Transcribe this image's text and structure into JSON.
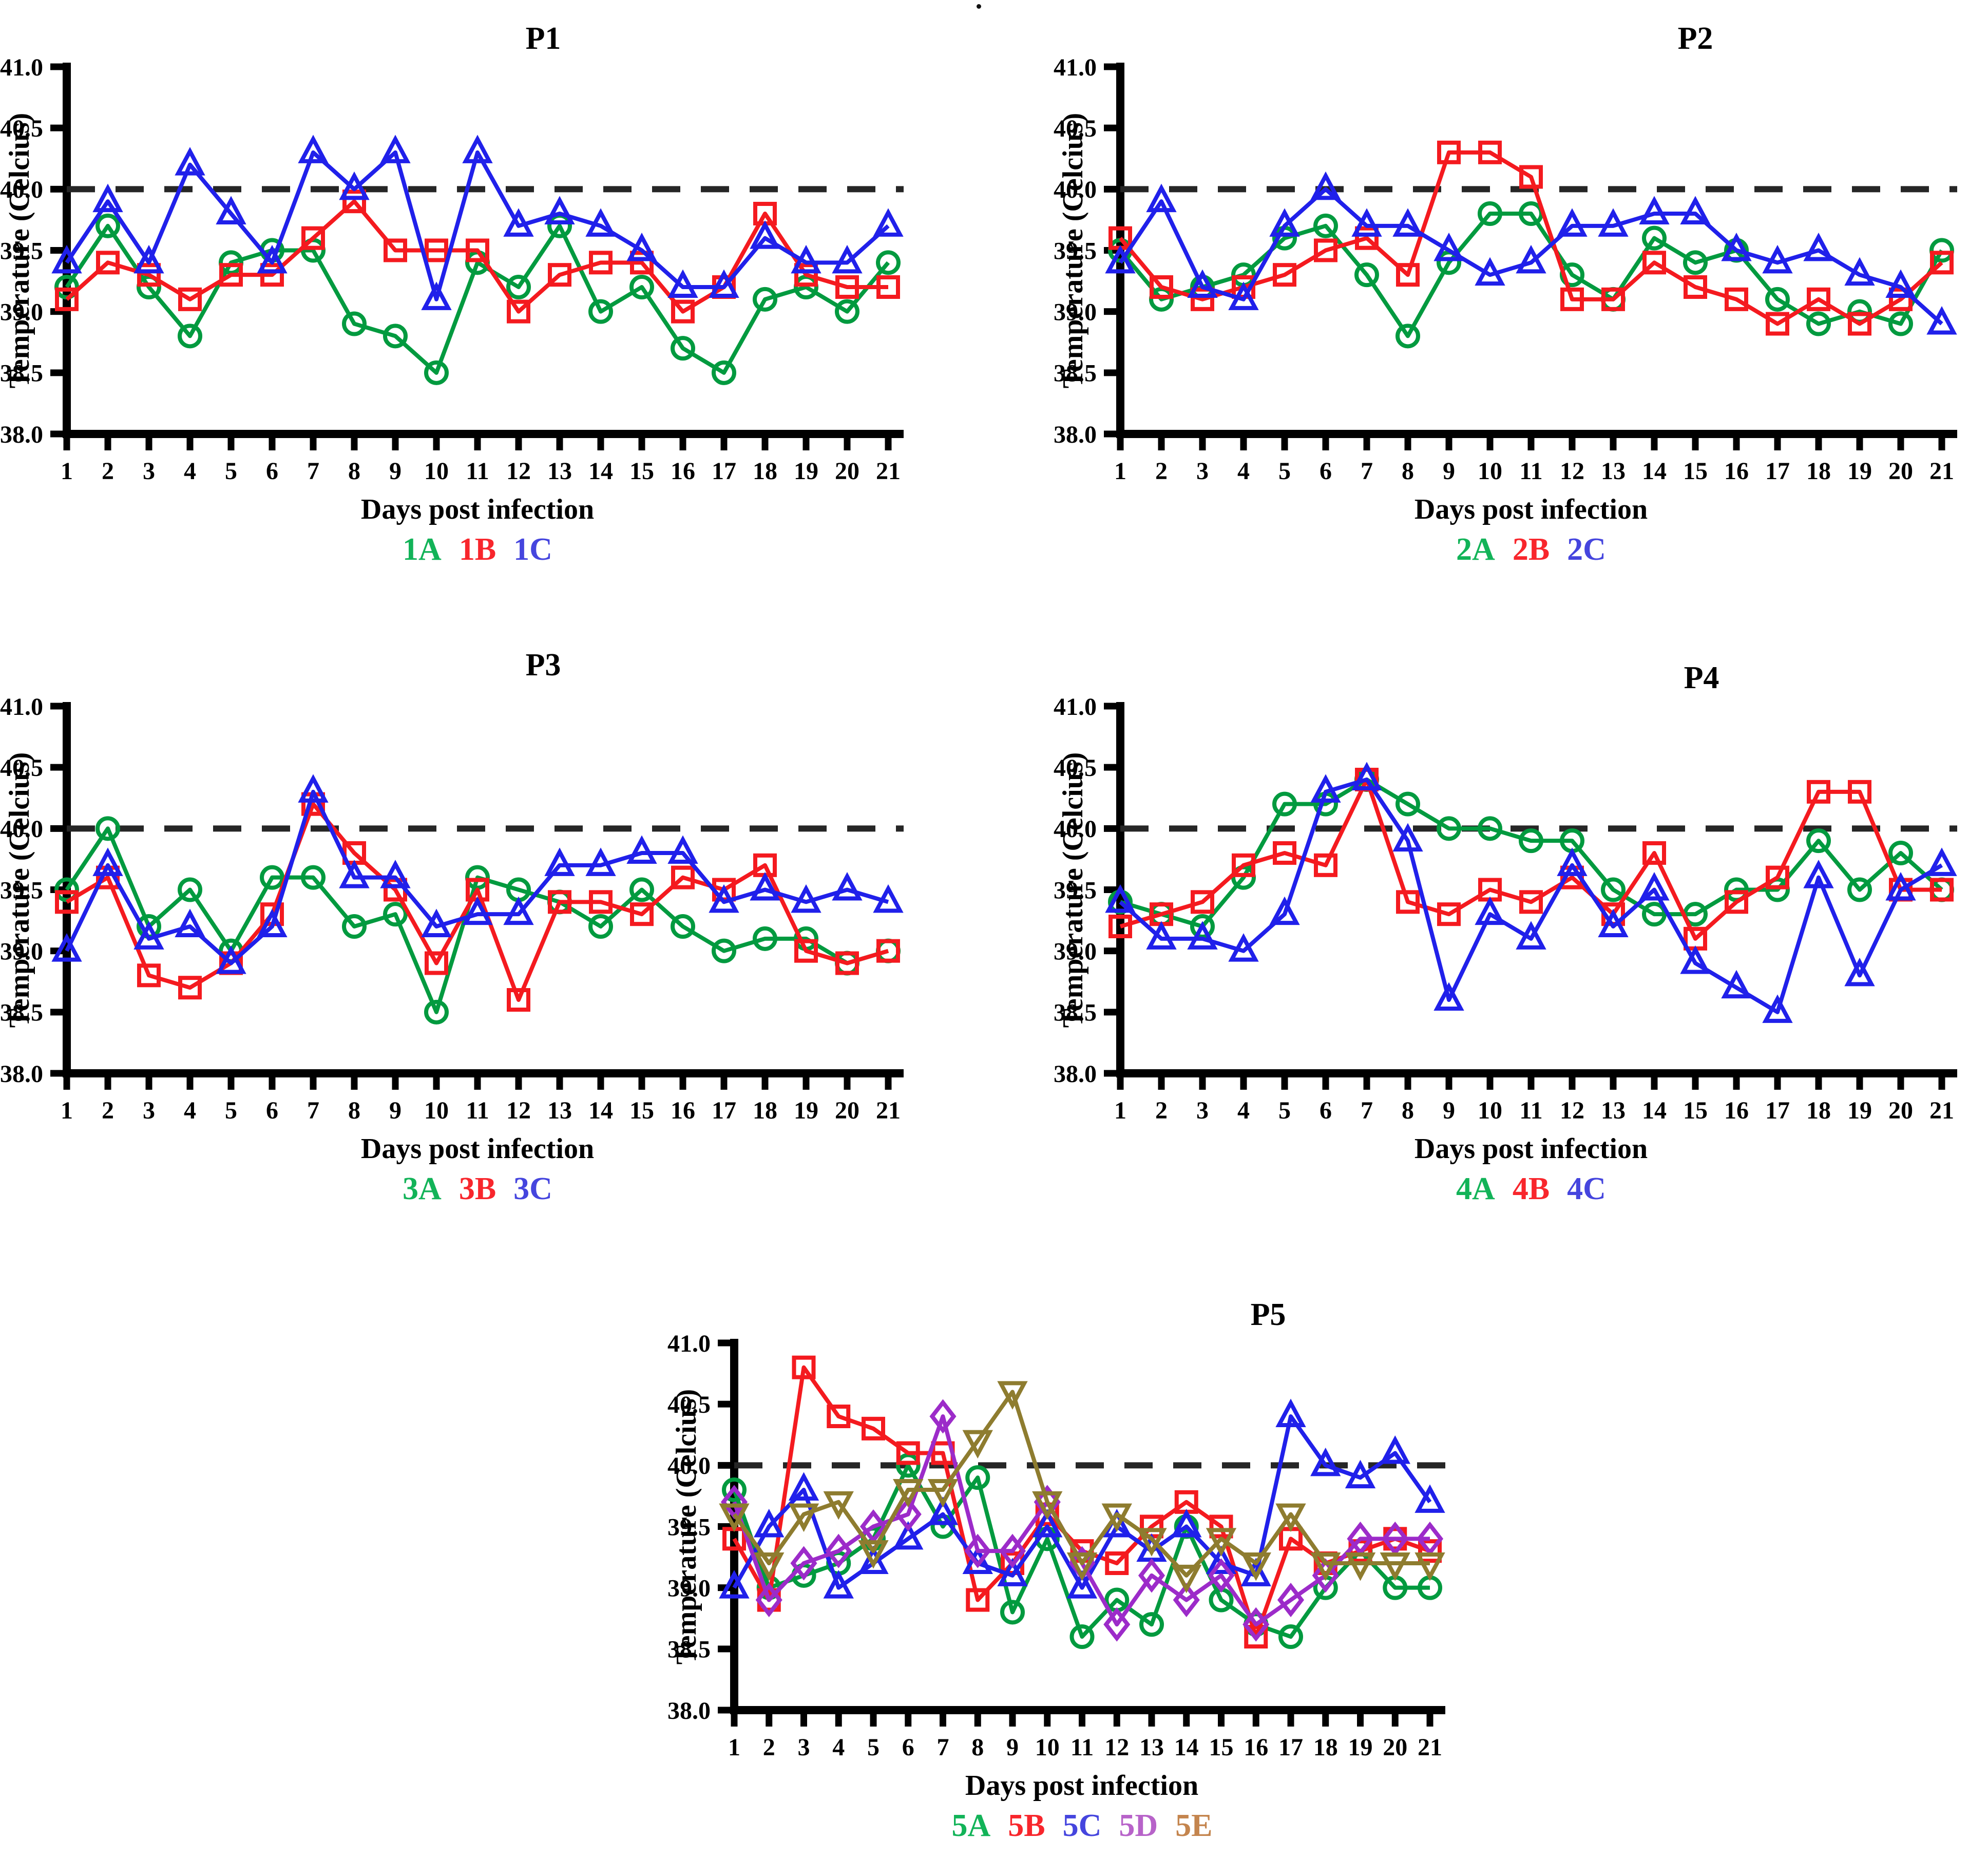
{
  "figure_note": "Five line charts of body temperature (Celcius) vs days post infection for animal groups P1-P5",
  "reference_line_color": "#262626",
  "chart_data": [
    {
      "type": "line",
      "title": "P1",
      "xlabel": "Days post infection",
      "ylabel": "Temperature (Celcius)",
      "x": [
        1,
        2,
        3,
        4,
        5,
        6,
        7,
        8,
        9,
        10,
        11,
        12,
        13,
        14,
        15,
        16,
        17,
        18,
        19,
        20,
        21
      ],
      "ylim": [
        38.0,
        41.0
      ],
      "yticks": [
        38.0,
        38.5,
        39.0,
        39.5,
        40.0,
        40.5,
        41.0
      ],
      "ytick_labels": [
        "38.0",
        "38.5",
        "39.0",
        "39.5",
        "40.0",
        "40.5",
        "41.0"
      ],
      "reference_line": 40.0,
      "grid": false,
      "legend_position": "bottom",
      "series": [
        {
          "name": "1A",
          "marker": "circle",
          "color": "#029A3F",
          "legend_color": "#12B358",
          "values": [
            39.2,
            39.7,
            39.2,
            38.8,
            39.4,
            39.5,
            39.5,
            38.9,
            38.8,
            38.5,
            39.4,
            39.2,
            39.7,
            39.0,
            39.2,
            38.7,
            38.5,
            39.1,
            39.2,
            39.0,
            39.4
          ]
        },
        {
          "name": "1B",
          "marker": "square",
          "color": "#F41A1F",
          "legend_color": "#F8262C",
          "values": [
            39.1,
            39.4,
            39.3,
            39.1,
            39.3,
            39.3,
            39.6,
            39.9,
            39.5,
            39.5,
            39.5,
            39.0,
            39.3,
            39.4,
            39.4,
            39.0,
            39.2,
            39.8,
            39.3,
            39.2,
            39.2
          ]
        },
        {
          "name": "1C",
          "marker": "triangle-up",
          "color": "#2020EA",
          "legend_color": "#4545DE",
          "values": [
            39.4,
            39.9,
            39.4,
            40.2,
            39.8,
            39.4,
            40.3,
            40.0,
            40.3,
            39.1,
            40.3,
            39.7,
            39.8,
            39.7,
            39.5,
            39.2,
            39.2,
            39.6,
            39.4,
            39.4,
            39.7
          ]
        }
      ]
    },
    {
      "type": "line",
      "title": "P2",
      "xlabel": "Days post infection",
      "ylabel": "Temperature (Celcius)",
      "x": [
        1,
        2,
        3,
        4,
        5,
        6,
        7,
        8,
        9,
        10,
        11,
        12,
        13,
        14,
        15,
        16,
        17,
        18,
        19,
        20,
        21
      ],
      "ylim": [
        38.0,
        41.0
      ],
      "yticks": [
        38.0,
        38.5,
        39.0,
        39.5,
        40.0,
        40.5,
        41.0
      ],
      "ytick_labels": [
        "38.0",
        "38.5",
        "39.0",
        "39.5",
        "40.0",
        "40.5",
        "41.0"
      ],
      "reference_line": 40.0,
      "grid": false,
      "legend_position": "bottom",
      "series": [
        {
          "name": "2A",
          "marker": "circle",
          "color": "#029A3F",
          "legend_color": "#12B358",
          "values": [
            39.5,
            39.1,
            39.2,
            39.3,
            39.6,
            39.7,
            39.3,
            38.8,
            39.4,
            39.8,
            39.8,
            39.3,
            39.1,
            39.6,
            39.4,
            39.5,
            39.1,
            38.9,
            39.0,
            38.9,
            39.5
          ]
        },
        {
          "name": "2B",
          "marker": "square",
          "color": "#F41A1F",
          "legend_color": "#F8262C",
          "values": [
            39.6,
            39.2,
            39.1,
            39.2,
            39.3,
            39.5,
            39.6,
            39.3,
            40.3,
            40.3,
            40.1,
            39.1,
            39.1,
            39.4,
            39.2,
            39.1,
            38.9,
            39.1,
            38.9,
            39.1,
            39.4
          ]
        },
        {
          "name": "2C",
          "marker": "triangle-up",
          "color": "#2020EA",
          "legend_color": "#4545DE",
          "values": [
            39.4,
            39.9,
            39.2,
            39.1,
            39.7,
            40.0,
            39.7,
            39.7,
            39.5,
            39.3,
            39.4,
            39.7,
            39.7,
            39.8,
            39.8,
            39.5,
            39.4,
            39.5,
            39.3,
            39.2,
            38.9
          ]
        }
      ]
    },
    {
      "type": "line",
      "title": "P3",
      "xlabel": "Days post infection",
      "ylabel": "Temperature (Celcius)",
      "x": [
        1,
        2,
        3,
        4,
        5,
        6,
        7,
        8,
        9,
        10,
        11,
        12,
        13,
        14,
        15,
        16,
        17,
        18,
        19,
        20,
        21
      ],
      "ylim": [
        38.0,
        41.0
      ],
      "yticks": [
        38.0,
        38.5,
        39.0,
        39.5,
        40.0,
        40.5,
        41.0
      ],
      "ytick_labels": [
        "38.0",
        "38.5",
        "39.0",
        "39.5",
        "40.0",
        "40.5",
        "41.0"
      ],
      "reference_line": 40.0,
      "grid": false,
      "legend_position": "bottom",
      "series": [
        {
          "name": "3A",
          "marker": "circle",
          "color": "#029A3F",
          "legend_color": "#12B358",
          "values": [
            39.5,
            40.0,
            39.2,
            39.5,
            39.0,
            39.6,
            39.6,
            39.2,
            39.3,
            38.5,
            39.6,
            39.5,
            39.4,
            39.2,
            39.5,
            39.2,
            39.0,
            39.1,
            39.1,
            38.9,
            39.0
          ]
        },
        {
          "name": "3B",
          "marker": "square",
          "color": "#F41A1F",
          "legend_color": "#F8262C",
          "values": [
            39.4,
            39.6,
            38.8,
            38.7,
            38.9,
            39.3,
            40.2,
            39.8,
            39.5,
            38.9,
            39.5,
            38.6,
            39.4,
            39.4,
            39.3,
            39.6,
            39.5,
            39.7,
            39.0,
            38.9,
            39.0
          ]
        },
        {
          "name": "3C",
          "marker": "triangle-up",
          "color": "#2020EA",
          "legend_color": "#4545DE",
          "values": [
            39.0,
            39.7,
            39.1,
            39.2,
            38.9,
            39.2,
            40.3,
            39.6,
            39.6,
            39.2,
            39.3,
            39.3,
            39.7,
            39.7,
            39.8,
            39.8,
            39.4,
            39.5,
            39.4,
            39.5,
            39.4
          ]
        }
      ]
    },
    {
      "type": "line",
      "title": "P4",
      "xlabel": "Days post infection",
      "ylabel": "Temperature (Celcius)",
      "x": [
        1,
        2,
        3,
        4,
        5,
        6,
        7,
        8,
        9,
        10,
        11,
        12,
        13,
        14,
        15,
        16,
        17,
        18,
        19,
        20,
        21
      ],
      "ylim": [
        38.0,
        41.0
      ],
      "yticks": [
        38.0,
        38.5,
        39.0,
        39.5,
        40.0,
        40.5,
        41.0
      ],
      "ytick_labels": [
        "38.0",
        "38.5",
        "39.0",
        "39.5",
        "40.0",
        "40.5",
        "41.0"
      ],
      "reference_line": 40.0,
      "grid": false,
      "legend_position": "bottom",
      "series": [
        {
          "name": "4A",
          "marker": "circle",
          "color": "#029A3F",
          "legend_color": "#12B358",
          "values": [
            39.4,
            39.3,
            39.2,
            39.6,
            40.2,
            40.2,
            40.4,
            40.2,
            40.0,
            40.0,
            39.9,
            39.9,
            39.5,
            39.3,
            39.3,
            39.5,
            39.5,
            39.9,
            39.5,
            39.8,
            39.5
          ]
        },
        {
          "name": "4B",
          "marker": "square",
          "color": "#F41A1F",
          "legend_color": "#F8262C",
          "values": [
            39.2,
            39.3,
            39.4,
            39.7,
            39.8,
            39.7,
            40.4,
            39.4,
            39.3,
            39.5,
            39.4,
            39.6,
            39.3,
            39.8,
            39.1,
            39.4,
            39.6,
            40.3,
            40.3,
            39.5,
            39.5
          ]
        },
        {
          "name": "4C",
          "marker": "triangle-up",
          "color": "#2020EA",
          "legend_color": "#4545DE",
          "values": [
            39.4,
            39.1,
            39.1,
            39.0,
            39.3,
            40.3,
            40.4,
            39.9,
            38.6,
            39.3,
            39.1,
            39.7,
            39.2,
            39.5,
            38.9,
            38.7,
            38.5,
            39.6,
            38.8,
            39.5,
            39.7
          ]
        }
      ]
    },
    {
      "type": "line",
      "title": "P5",
      "xlabel": "Days post infection",
      "ylabel": "Temperature (Celcius)",
      "x": [
        1,
        2,
        3,
        4,
        5,
        6,
        7,
        8,
        9,
        10,
        11,
        12,
        13,
        14,
        15,
        16,
        17,
        18,
        19,
        20,
        21
      ],
      "ylim": [
        38.0,
        41.0
      ],
      "yticks": [
        38.0,
        38.5,
        39.0,
        39.5,
        40.0,
        40.5,
        41.0
      ],
      "ytick_labels": [
        "38.0",
        "38.5",
        "39.0",
        "39.5",
        "40.0",
        "40.5",
        "41.0"
      ],
      "reference_line": 40.0,
      "grid": false,
      "legend_position": "bottom",
      "series": [
        {
          "name": "5A",
          "marker": "circle",
          "color": "#029A3F",
          "legend_color": "#12B358",
          "values": [
            39.8,
            39.0,
            39.1,
            39.2,
            39.4,
            40.0,
            39.5,
            39.9,
            38.8,
            39.4,
            38.6,
            38.9,
            38.7,
            39.5,
            38.9,
            38.7,
            38.6,
            39.0,
            39.3,
            39.0,
            39.0
          ]
        },
        {
          "name": "5B",
          "marker": "square",
          "color": "#F41A1F",
          "legend_color": "#F8262C",
          "values": [
            39.4,
            38.9,
            40.8,
            40.4,
            40.3,
            40.1,
            40.1,
            38.9,
            39.2,
            39.6,
            39.3,
            39.2,
            39.5,
            39.7,
            39.5,
            38.6,
            39.4,
            39.2,
            39.3,
            39.4,
            39.3
          ]
        },
        {
          "name": "5C",
          "marker": "triangle-up",
          "color": "#2020EA",
          "legend_color": "#4545DE",
          "values": [
            39.0,
            39.5,
            39.8,
            39.0,
            39.2,
            39.4,
            39.6,
            39.2,
            39.1,
            39.5,
            39.0,
            39.5,
            39.3,
            39.5,
            39.2,
            39.1,
            40.4,
            40.0,
            39.9,
            40.1,
            39.7
          ]
        },
        {
          "name": "5D",
          "marker": "diamond",
          "color": "#9C2BC9",
          "legend_color": "#B763C9",
          "values": [
            39.7,
            38.9,
            39.2,
            39.3,
            39.5,
            39.6,
            40.4,
            39.3,
            39.3,
            39.7,
            39.2,
            38.7,
            39.1,
            38.9,
            39.1,
            38.7,
            38.9,
            39.1,
            39.4,
            39.4,
            39.4
          ]
        },
        {
          "name": "5E",
          "marker": "triangle-down",
          "color": "#8E7C2F",
          "legend_color": "#C4854E",
          "values": [
            39.6,
            39.2,
            39.6,
            39.7,
            39.3,
            39.8,
            39.8,
            40.2,
            40.6,
            39.7,
            39.2,
            39.6,
            39.4,
            39.1,
            39.4,
            39.2,
            39.6,
            39.2,
            39.2,
            39.2,
            39.2
          ]
        }
      ]
    }
  ]
}
